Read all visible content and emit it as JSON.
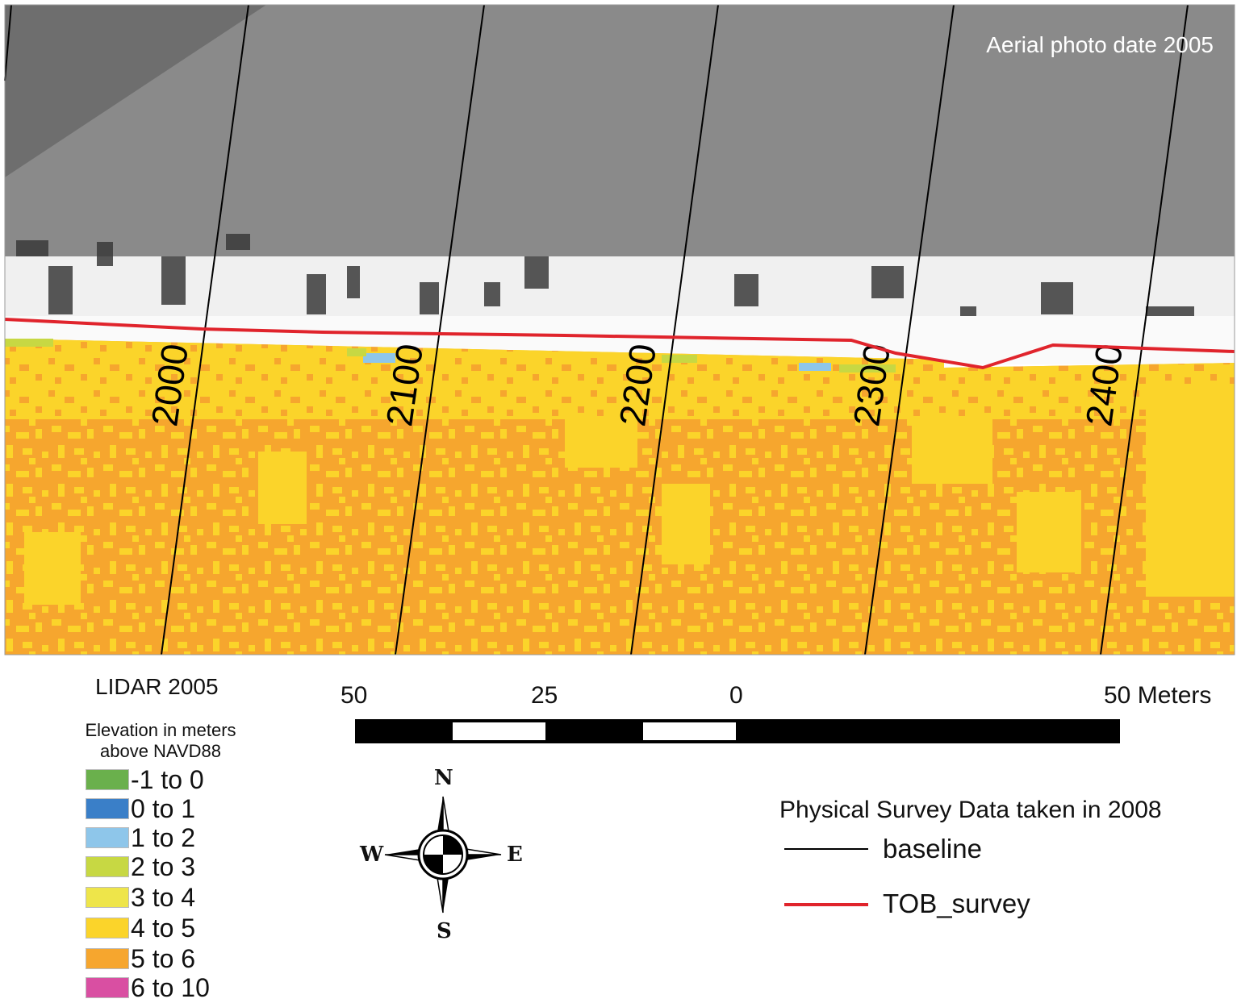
{
  "map": {
    "photo_caption": "Aerial photo date 2005",
    "transects": [
      "2000",
      "2100",
      "2200",
      "2300",
      "2400"
    ]
  },
  "legend": {
    "title": "LIDAR 2005",
    "subtitle_line1": "Elevation in meters",
    "subtitle_line2": "above NAVD88",
    "classes": [
      {
        "label": "-1 to 0",
        "color": "#6ab04c"
      },
      {
        "label": "0 to 1",
        "color": "#3a7fc8"
      },
      {
        "label": "1 to 2",
        "color": "#8ec6ea"
      },
      {
        "label": "2 to 3",
        "color": "#c7d843"
      },
      {
        "label": "3 to 4",
        "color": "#eee54a"
      },
      {
        "label": "4 to 5",
        "color": "#fbd42a"
      },
      {
        "label": "5 to 6",
        "color": "#f6a62e"
      },
      {
        "label": "6 to 10",
        "color": "#d94fa2"
      }
    ]
  },
  "scale_bar": {
    "labels": [
      "50",
      "25",
      "0",
      "50 Meters"
    ]
  },
  "compass": {
    "n": "N",
    "s": "S",
    "e": "E",
    "w": "W"
  },
  "survey": {
    "title": "Physical Survey Data taken in 2008",
    "baseline_label": "baseline",
    "tob_label": "TOB_survey",
    "baseline_color": "#000000",
    "tob_color": "#e0242c"
  }
}
